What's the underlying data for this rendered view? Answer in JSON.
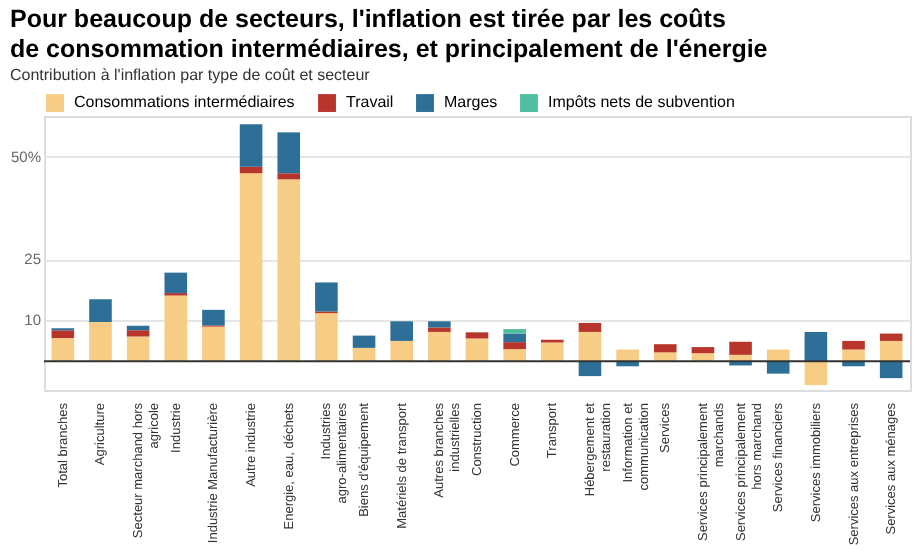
{
  "chart_data": {
    "type": "bar",
    "stacked": true,
    "title": "Pour beaucoup de secteurs, l'inflation est tirée par les coûts de consommation intermédiaires, et principalement de l'énergie",
    "subtitle": "Contribution à l'inflation par type de coût et secteur",
    "categories": [
      "Total branches",
      "Agriculture",
      "Secteur marchand hors agricole",
      "Industrie",
      "Industrie Manufacturière",
      "Autre industrie",
      "Energie, eau, déchets",
      "Industries agro-alimentaires",
      "Biens d'équipement",
      "Matériels de transport",
      "Autres branches industrielles",
      "Construction",
      "Commerce",
      "Transport",
      "Hébergement et restauration",
      "Information et communication",
      "Services",
      "Services principalement marchands",
      "Services principalement hors marchand",
      "Services financiers",
      "Services immobiliers",
      "Services aux entreprises",
      "Services aux ménages"
    ],
    "series": [
      {
        "name": "Consommations intermédiaires",
        "color": "#f7cd85",
        "values": [
          5.7,
          9.6,
          6.1,
          16.1,
          8.5,
          46,
          44.5,
          11.8,
          3.3,
          5,
          7.2,
          5.6,
          3,
          4.6,
          7.2,
          2.9,
          2.2,
          2,
          1.6,
          2.9,
          -5.8,
          2.9,
          5
        ]
      },
      {
        "name": "Travail",
        "color": "#b8352b",
        "values": [
          1.9,
          0,
          1.5,
          0.6,
          0.3,
          1.6,
          1.5,
          0.4,
          0,
          0,
          1.1,
          1.5,
          1.7,
          0.7,
          2.2,
          0,
          2,
          1.5,
          3.2,
          0,
          0,
          2.1,
          1.8
        ]
      },
      {
        "name": "Marges",
        "color": "#2e6f97",
        "values": [
          0.5,
          5.6,
          1.1,
          5,
          3.8,
          10.4,
          10,
          7.1,
          3,
          4.8,
          1.5,
          0,
          2.1,
          0,
          -3.6,
          -1.2,
          0,
          0,
          -1,
          -3,
          7.2,
          -1.2,
          -4.1
        ]
      },
      {
        "name": "Impôts nets de subvention",
        "color": "#4fbfa0",
        "values": [
          0,
          0,
          0,
          0,
          0,
          0,
          0,
          0,
          0,
          0,
          0,
          0,
          1.1,
          0,
          0,
          0,
          0,
          0,
          0,
          0,
          0,
          0,
          0
        ]
      }
    ],
    "ylim": [
      -7,
      60
    ],
    "yticks": [
      10,
      25,
      {
        "value": 50,
        "label": "50%"
      }
    ],
    "ref_lines": [
      {
        "axis": "y",
        "value": 0,
        "color": "#333333"
      }
    ],
    "grid": "y",
    "legend": "top"
  }
}
